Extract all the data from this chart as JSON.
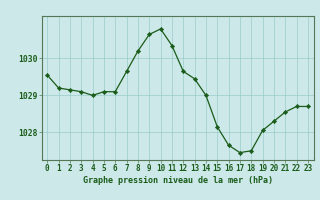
{
  "x": [
    0,
    1,
    2,
    3,
    4,
    5,
    6,
    7,
    8,
    9,
    10,
    11,
    12,
    13,
    14,
    15,
    16,
    17,
    18,
    19,
    20,
    21,
    22,
    23
  ],
  "y": [
    1029.55,
    1029.2,
    1029.15,
    1029.1,
    1029.0,
    1029.1,
    1029.1,
    1029.65,
    1030.2,
    1030.65,
    1030.8,
    1030.35,
    1029.65,
    1029.45,
    1029.0,
    1028.15,
    1027.65,
    1027.45,
    1027.5,
    1028.05,
    1028.3,
    1028.55,
    1028.7,
    1028.7
  ],
  "line_color": "#1a5c1a",
  "marker_color": "#1a5c1a",
  "bg_color": "#cce8e8",
  "grid_color": "#99cccc",
  "text_color": "#1a5c1a",
  "title": "Graphe pression niveau de la mer (hPa)",
  "ylim": [
    1027.25,
    1031.15
  ],
  "yticks": [
    1028,
    1029,
    1030
  ],
  "xlim": [
    -0.5,
    23.5
  ],
  "xticks": [
    0,
    1,
    2,
    3,
    4,
    5,
    6,
    7,
    8,
    9,
    10,
    11,
    12,
    13,
    14,
    15,
    16,
    17,
    18,
    19,
    20,
    21,
    22,
    23
  ],
  "title_fontsize": 6.0,
  "tick_fontsize": 5.5
}
